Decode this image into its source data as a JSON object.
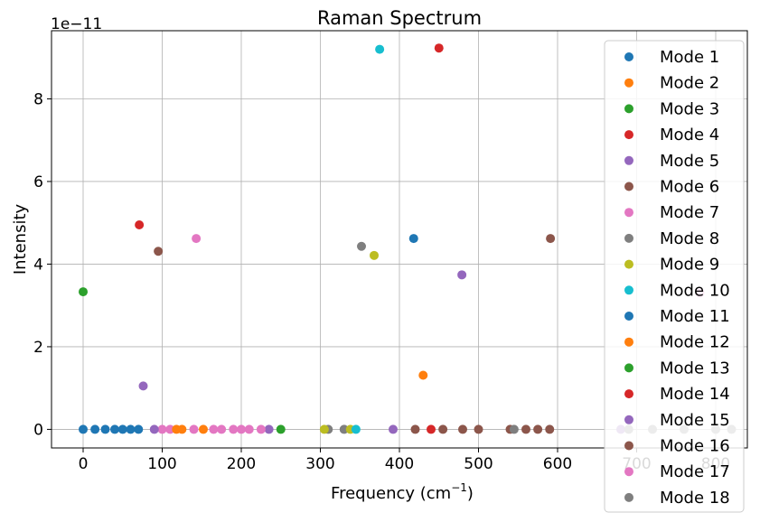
{
  "chart_data": {
    "type": "scatter",
    "title": "Raman Spectrum",
    "xlabel": "Frequency (cm",
    "xlabel_sup": "−1",
    "xlabel_end": ")",
    "ylabel": "Intensity",
    "y_offset_label": "1e−11",
    "xlim": [
      -40,
      840
    ],
    "ylim": [
      -0.45,
      9.65
    ],
    "y_scale_note": "values in units of 1e-11",
    "x_ticks": [
      0,
      100,
      200,
      300,
      400,
      500,
      600,
      700,
      800
    ],
    "y_ticks": [
      0,
      2,
      4,
      6,
      8
    ],
    "grid": true,
    "legend_position": "upper right",
    "series": [
      {
        "name": "Mode 1",
        "color": "#1f77b4",
        "points": [
          [
            418,
            4.62
          ],
          [
            0,
            0
          ],
          [
            15,
            0
          ],
          [
            28,
            0
          ],
          [
            40,
            0
          ],
          [
            50,
            0
          ]
        ]
      },
      {
        "name": "Mode 2",
        "color": "#ff7f0e",
        "points": [
          [
            430,
            1.31
          ],
          [
            125,
            0
          ],
          [
            152,
            0
          ]
        ]
      },
      {
        "name": "Mode 3",
        "color": "#2ca02c",
        "points": [
          [
            0,
            3.33
          ]
        ]
      },
      {
        "name": "Mode 4",
        "color": "#d62728",
        "points": [
          [
            71,
            4.95
          ],
          [
            450,
            9.23
          ]
        ]
      },
      {
        "name": "Mode 5",
        "color": "#9467bd",
        "points": [
          [
            76,
            1.05
          ],
          [
            479,
            3.74
          ],
          [
            235,
            0
          ],
          [
            392,
            0
          ]
        ]
      },
      {
        "name": "Mode 6",
        "color": "#8c564b",
        "points": [
          [
            95,
            4.31
          ],
          [
            591,
            4.62
          ],
          [
            420,
            0
          ],
          [
            455,
            0
          ],
          [
            500,
            0
          ],
          [
            540,
            0
          ],
          [
            575,
            0
          ],
          [
            590,
            0
          ]
        ]
      },
      {
        "name": "Mode 7",
        "color": "#e377c2",
        "points": [
          [
            143,
            4.62
          ],
          [
            100,
            0
          ],
          [
            110,
            0
          ],
          [
            140,
            0
          ],
          [
            165,
            0
          ],
          [
            175,
            0
          ],
          [
            190,
            0
          ],
          [
            210,
            0
          ],
          [
            225,
            0
          ]
        ]
      },
      {
        "name": "Mode 8",
        "color": "#7f7f7f",
        "points": [
          [
            352,
            4.43
          ],
          [
            310,
            0
          ],
          [
            330,
            0
          ],
          [
            545,
            0
          ]
        ]
      },
      {
        "name": "Mode 9",
        "color": "#bcbd22",
        "points": [
          [
            368,
            4.21
          ],
          [
            305,
            0
          ],
          [
            338,
            0
          ]
        ]
      },
      {
        "name": "Mode 10",
        "color": "#17becf",
        "points": [
          [
            375,
            9.2
          ],
          [
            345,
            0
          ]
        ]
      },
      {
        "name": "Mode 11",
        "color": "#1f77b4",
        "points": [
          [
            60,
            0
          ],
          [
            70,
            0
          ]
        ]
      },
      {
        "name": "Mode 12",
        "color": "#ff7f0e",
        "points": [
          [
            118,
            0
          ]
        ]
      },
      {
        "name": "Mode 13",
        "color": "#2ca02c",
        "points": [
          [
            250,
            0
          ]
        ]
      },
      {
        "name": "Mode 14",
        "color": "#d62728",
        "points": [
          [
            440,
            0
          ]
        ]
      },
      {
        "name": "Mode 15",
        "color": "#9467bd",
        "points": [
          [
            90,
            0
          ],
          [
            680,
            0
          ]
        ]
      },
      {
        "name": "Mode 16",
        "color": "#8c564b",
        "points": [
          [
            480,
            0
          ],
          [
            560,
            0
          ]
        ]
      },
      {
        "name": "Mode 17",
        "color": "#e377c2",
        "points": [
          [
            780,
            3.3
          ],
          [
            200,
            0
          ]
        ]
      },
      {
        "name": "Mode 18",
        "color": "#7f7f7f",
        "points": [
          [
            690,
            0
          ],
          [
            720,
            0
          ],
          [
            760,
            0
          ],
          [
            800,
            0
          ],
          [
            820,
            0
          ]
        ]
      }
    ]
  }
}
